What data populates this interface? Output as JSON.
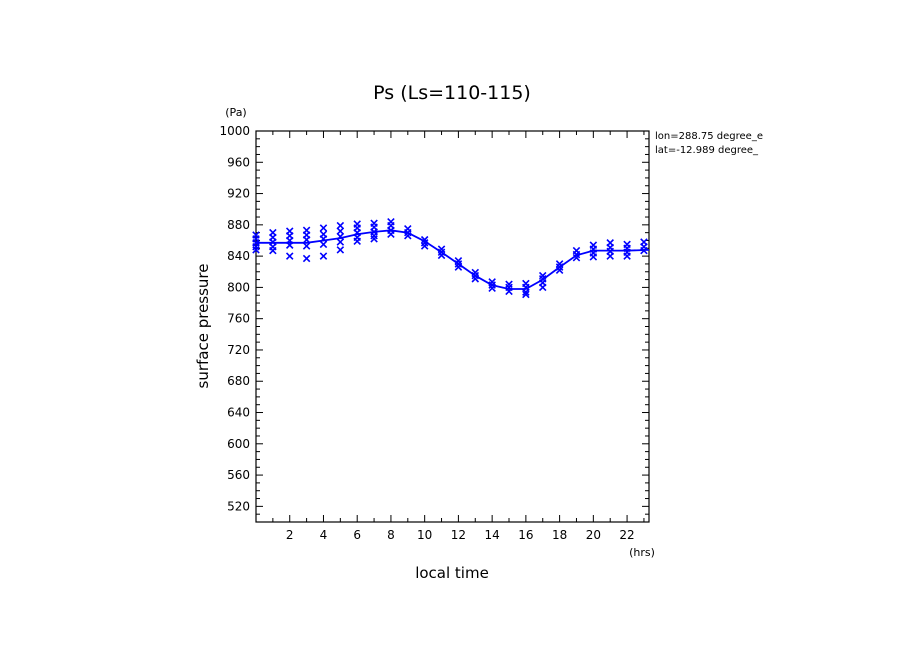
{
  "chart_data": {
    "type": "line",
    "title": "Ps (Ls=110-115)",
    "xlabel": "local time",
    "ylabel": "surface pressure",
    "x_unit": "(hrs)",
    "y_unit": "(Pa)",
    "xlim": [
      0,
      23.3
    ],
    "ylim": [
      500,
      1000
    ],
    "x_ticks": [
      2,
      4,
      6,
      8,
      10,
      12,
      14,
      16,
      18,
      20,
      22
    ],
    "y_ticks": [
      520,
      560,
      600,
      640,
      680,
      720,
      760,
      800,
      840,
      880,
      920,
      960,
      1000
    ],
    "grid": false,
    "annotations": [
      "lon=288.75 degree_e",
      "lat=-12.989 degree_"
    ],
    "colors": {
      "series": "#0000ff",
      "axes": "#000000"
    },
    "series": [
      {
        "style": "line",
        "x": [
          0,
          1,
          2,
          3,
          4,
          5,
          6,
          7,
          8,
          9,
          10,
          11,
          12,
          13,
          14,
          15,
          16,
          17,
          18,
          19,
          20,
          21,
          22,
          23.3
        ],
        "y": [
          857,
          857,
          857,
          857,
          860,
          863,
          868,
          871,
          873,
          870,
          859,
          845,
          830,
          815,
          803,
          798,
          798,
          810,
          826,
          841,
          847,
          847,
          847,
          848
        ]
      },
      {
        "style": "scatter",
        "marker": "x",
        "points": [
          [
            0,
            867
          ],
          [
            0,
            862
          ],
          [
            0,
            857
          ],
          [
            0,
            852
          ],
          [
            0,
            848
          ],
          [
            1,
            870
          ],
          [
            1,
            864
          ],
          [
            1,
            858
          ],
          [
            1,
            852
          ],
          [
            1,
            847
          ],
          [
            2,
            872
          ],
          [
            2,
            866
          ],
          [
            2,
            860
          ],
          [
            2,
            854
          ],
          [
            2,
            840
          ],
          [
            3,
            873
          ],
          [
            3,
            867
          ],
          [
            3,
            861
          ],
          [
            3,
            853
          ],
          [
            3,
            837
          ],
          [
            4,
            876
          ],
          [
            4,
            868
          ],
          [
            4,
            862
          ],
          [
            4,
            855
          ],
          [
            4,
            840
          ],
          [
            5,
            879
          ],
          [
            5,
            872
          ],
          [
            5,
            865
          ],
          [
            5,
            858
          ],
          [
            5,
            848
          ],
          [
            6,
            881
          ],
          [
            6,
            876
          ],
          [
            6,
            870
          ],
          [
            6,
            864
          ],
          [
            6,
            859
          ],
          [
            7,
            882
          ],
          [
            7,
            877
          ],
          [
            7,
            871
          ],
          [
            7,
            866
          ],
          [
            7,
            862
          ],
          [
            8,
            884
          ],
          [
            8,
            879
          ],
          [
            8,
            873
          ],
          [
            8,
            868
          ],
          [
            9,
            875
          ],
          [
            9,
            870
          ],
          [
            9,
            866
          ],
          [
            10,
            861
          ],
          [
            10,
            857
          ],
          [
            10,
            853
          ],
          [
            11,
            849
          ],
          [
            11,
            845
          ],
          [
            11,
            841
          ],
          [
            12,
            834
          ],
          [
            12,
            830
          ],
          [
            12,
            826
          ],
          [
            13,
            819
          ],
          [
            13,
            815
          ],
          [
            13,
            811
          ],
          [
            14,
            807
          ],
          [
            14,
            803
          ],
          [
            14,
            799
          ],
          [
            15,
            804
          ],
          [
            15,
            800
          ],
          [
            15,
            795
          ],
          [
            16,
            805
          ],
          [
            16,
            800
          ],
          [
            16,
            794
          ],
          [
            16,
            791
          ],
          [
            17,
            815
          ],
          [
            17,
            811
          ],
          [
            17,
            806
          ],
          [
            17,
            800
          ],
          [
            18,
            830
          ],
          [
            18,
            826
          ],
          [
            18,
            822
          ],
          [
            19,
            847
          ],
          [
            19,
            842
          ],
          [
            19,
            838
          ],
          [
            20,
            854
          ],
          [
            20,
            849
          ],
          [
            20,
            844
          ],
          [
            20,
            839
          ],
          [
            21,
            857
          ],
          [
            21,
            851
          ],
          [
            21,
            846
          ],
          [
            21,
            840
          ],
          [
            22,
            855
          ],
          [
            22,
            850
          ],
          [
            22,
            845
          ],
          [
            22,
            840
          ],
          [
            23,
            858
          ],
          [
            23,
            852
          ],
          [
            23,
            847
          ]
        ]
      }
    ]
  }
}
